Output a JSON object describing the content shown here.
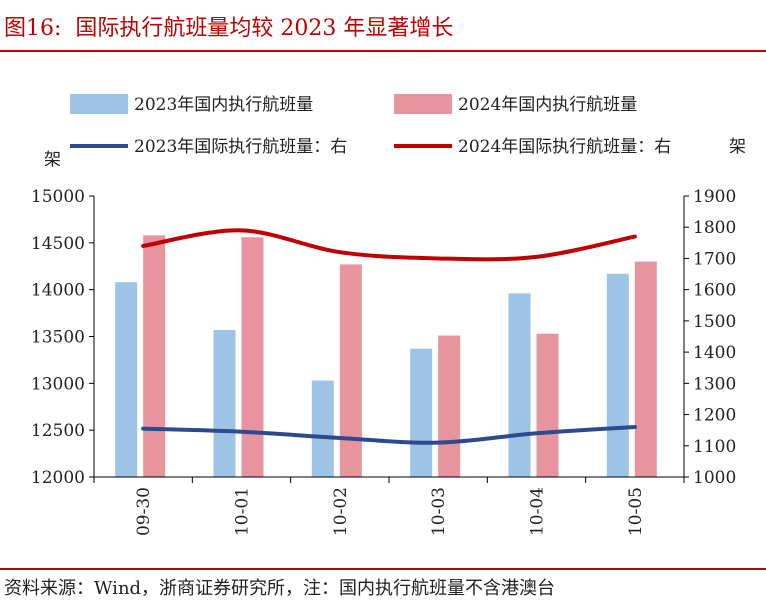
{
  "figure": {
    "number": "图16:",
    "title": "国际执行航班量均较 2023 年显著增长"
  },
  "source_note": "资料来源：Wind，浙商证券研究所，注：国内执行航班量不含港澳台",
  "colors": {
    "bar_2023": "#9dc3e6",
    "bar_2024": "#e8949e",
    "line_2023": "#2e4a8e",
    "line_2024": "#c00000",
    "title": "#c00000"
  },
  "chart_data": {
    "type": "bar+line",
    "categories": [
      "09-30",
      "10-01",
      "10-02",
      "10-03",
      "10-04",
      "10-05"
    ],
    "series": [
      {
        "name": "2023年国内执行航班量",
        "type": "bar",
        "axis": "left",
        "values": [
          14080,
          13570,
          13030,
          13370,
          13960,
          14170
        ]
      },
      {
        "name": "2024年国内执行航班量",
        "type": "bar",
        "axis": "left",
        "values": [
          14580,
          14560,
          14270,
          13510,
          13530,
          14300
        ]
      },
      {
        "name": "2023年国际执行航班量：右",
        "type": "line",
        "axis": "right",
        "values": [
          1155,
          1145,
          1125,
          1110,
          1140,
          1160
        ]
      },
      {
        "name": "2024年国际执行航班量：右",
        "type": "line",
        "axis": "right",
        "values": [
          1740,
          1790,
          1720,
          1700,
          1705,
          1770
        ]
      }
    ],
    "y_left": {
      "label": "架",
      "min": 12000,
      "max": 15000,
      "ticks": [
        "12000",
        "12500",
        "13000",
        "13500",
        "14000",
        "14500",
        "15000"
      ]
    },
    "y_right": {
      "label": "架",
      "min": 1000,
      "max": 1900,
      "ticks": [
        "1000",
        "1100",
        "1200",
        "1300",
        "1400",
        "1500",
        "1600",
        "1700",
        "1800",
        "1900"
      ]
    },
    "legend_position": "top",
    "grid": false
  }
}
